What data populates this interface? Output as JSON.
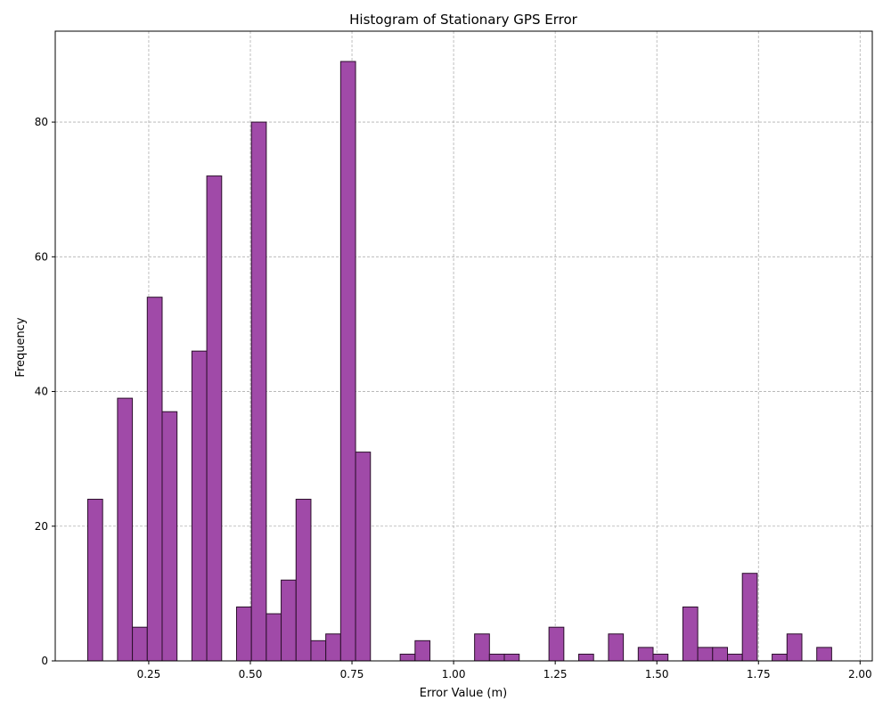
{
  "chart_data": {
    "type": "bar",
    "title": "Histogram of Stationary GPS Error",
    "xlabel": "Error Value (m)",
    "ylabel": "Frequency",
    "xlim": [
      0.02,
      2.03
    ],
    "ylim": [
      0,
      93.5
    ],
    "xticks": [
      0.25,
      0.5,
      0.75,
      1.0,
      1.25,
      1.5,
      1.75,
      2.0
    ],
    "xtick_labels": [
      "0.25",
      "0.50",
      "0.75",
      "1.00",
      "1.25",
      "1.50",
      "1.75",
      "2.00"
    ],
    "yticks": [
      0,
      20,
      40,
      60,
      80
    ],
    "ytick_labels": [
      "0",
      "20",
      "40",
      "60",
      "80"
    ],
    "grid": true,
    "bar_color": "#a04aa8",
    "edge_color": "#2b0f2b",
    "bins": {
      "start": 0.1,
      "width": 0.0366,
      "counts": [
        24,
        0,
        39,
        5,
        54,
        37,
        0,
        46,
        72,
        0,
        8,
        80,
        7,
        12,
        24,
        3,
        4,
        89,
        31,
        0,
        0,
        1,
        3,
        0,
        0,
        0,
        4,
        1,
        1,
        0,
        0,
        5,
        0,
        1,
        0,
        4,
        0,
        2,
        1,
        0,
        8,
        2,
        2,
        1,
        13,
        0,
        1,
        4,
        0,
        2
      ]
    }
  }
}
